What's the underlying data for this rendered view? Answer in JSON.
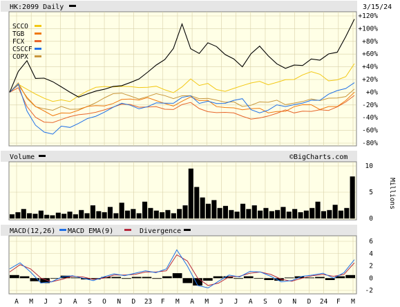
{
  "header": {
    "title": "HK:2099 Daily",
    "date": "3/15/24",
    "watermark": "©BigCharts.com"
  },
  "colors": {
    "hk2099": "#000000",
    "SCCO": "#f2c814",
    "TGB": "#f07a10",
    "FCX": "#e6642a",
    "CSCCF": "#1e6fe6",
    "COPX": "#c8963c",
    "macd": "#1e6fe6",
    "ema": "#b4283c",
    "divergence": "#000000",
    "volume": "#000000"
  },
  "chart_data": [
    {
      "type": "line",
      "panel": "price",
      "title": "HK:2099 Daily",
      "ylim": [
        -80,
        120
      ],
      "yticks": [
        "+120%",
        "+100%",
        "+80%",
        "+60%",
        "+40%",
        "+20%",
        "+0%",
        "-20%",
        "-40%",
        "-60%",
        "-80%"
      ],
      "xticks": [
        "A",
        "M",
        "J",
        "J",
        "A",
        "S",
        "O",
        "N",
        "D",
        "23",
        "F",
        "M",
        "A",
        "M",
        "J",
        "J",
        "A",
        "S",
        "O",
        "N",
        "D",
        "24",
        "F",
        "M"
      ],
      "legend": [
        "SCCO",
        "TGB",
        "FCX",
        "CSCCF",
        "COPX"
      ],
      "series": [
        {
          "name": "HK:2099",
          "values": [
            0,
            35,
            52,
            22,
            20,
            14,
            8,
            2,
            -5,
            -2,
            0,
            2,
            8,
            12,
            18,
            22,
            30,
            40,
            50,
            70,
            110,
            70,
            60,
            75,
            70,
            60,
            55,
            42,
            60,
            70,
            55,
            45,
            40,
            45,
            42,
            50,
            48,
            60,
            65,
            90,
            115
          ]
        },
        {
          "name": "SCCO",
          "values": [
            0,
            15,
            5,
            -5,
            -12,
            -15,
            -10,
            -12,
            -5,
            0,
            5,
            8,
            10,
            12,
            10,
            6,
            5,
            8,
            5,
            2,
            10,
            20,
            8,
            12,
            5,
            4,
            8,
            10,
            12,
            15,
            12,
            18,
            22,
            20,
            25,
            30,
            28,
            20,
            22,
            25,
            45
          ]
        },
        {
          "name": "TGB",
          "values": [
            0,
            12,
            -10,
            -25,
            -30,
            -35,
            -30,
            -32,
            -30,
            -25,
            -22,
            -20,
            -15,
            -10,
            -12,
            -15,
            -10,
            -12,
            -15,
            -20,
            -15,
            -10,
            -15,
            -12,
            -20,
            -22,
            -25,
            -30,
            -28,
            -25,
            -30,
            -28,
            -30,
            -25,
            -22,
            -20,
            -25,
            -20,
            -22,
            -15,
            0
          ]
        },
        {
          "name": "FCX",
          "values": [
            0,
            5,
            -25,
            -40,
            -45,
            -45,
            -42,
            -40,
            -38,
            -35,
            -30,
            -25,
            -22,
            -20,
            -22,
            -25,
            -22,
            -20,
            -25,
            -28,
            -22,
            -18,
            -25,
            -28,
            -30,
            -32,
            -35,
            -40,
            -42,
            -38,
            -35,
            -33,
            -30,
            -35,
            -30,
            -28,
            -25,
            -28,
            -25,
            -18,
            -5
          ]
        },
        {
          "name": "CSCCF",
          "values": [
            0,
            10,
            -30,
            -50,
            -60,
            -65,
            -55,
            -58,
            -50,
            -40,
            -35,
            -30,
            -25,
            -20,
            -22,
            -25,
            -20,
            -15,
            -18,
            -20,
            -10,
            -5,
            -15,
            -12,
            -18,
            -20,
            -15,
            -10,
            -25,
            -30,
            -28,
            -22,
            -25,
            -20,
            -15,
            -10,
            -12,
            -5,
            0,
            5,
            15
          ]
        },
        {
          "name": "COPX",
          "values": [
            0,
            14,
            -8,
            -20,
            -25,
            -30,
            -25,
            -28,
            -25,
            -20,
            -15,
            -10,
            -5,
            -3,
            -5,
            -8,
            -5,
            -3,
            -8,
            -12,
            -5,
            -3,
            -8,
            -10,
            -15,
            -18,
            -15,
            -20,
            -18,
            -15,
            -18,
            -15,
            -20,
            -15,
            -12,
            -10,
            -15,
            -12,
            -10,
            -5,
            5
          ]
        }
      ]
    },
    {
      "type": "bar",
      "panel": "volume",
      "title": "Volume",
      "ylabel": "Millions",
      "ylim": [
        0,
        10
      ],
      "yticks": [
        "10",
        "5",
        "0"
      ],
      "values": [
        0.8,
        1.2,
        1.8,
        1.0,
        0.9,
        1.5,
        0.7,
        0.6,
        1.1,
        0.9,
        1.3,
        0.8,
        1.6,
        1.0,
        2.5,
        1.4,
        1.2,
        2.2,
        1.0,
        3.0,
        1.5,
        1.8,
        1.0,
        3.2,
        2.0,
        1.5,
        1.2,
        1.6,
        1.0,
        1.8,
        2.5,
        9.5,
        6.0,
        4.0,
        2.8,
        3.5,
        2.0,
        2.4,
        1.6,
        1.3,
        2.8,
        1.8,
        2.5,
        1.5,
        2.0,
        1.4,
        1.6,
        2.2,
        1.3,
        1.8,
        1.2,
        1.5,
        2.0,
        3.2,
        1.4,
        1.6,
        2.6,
        1.5,
        2.0,
        8.0
      ]
    },
    {
      "type": "line",
      "panel": "macd",
      "title": "MACD(12,26)",
      "legend": [
        "MACD EMA(9)",
        "Divergence"
      ],
      "ylim": [
        -2,
        6
      ],
      "yticks": [
        "6",
        "4",
        "2",
        "0",
        "-2"
      ],
      "series": [
        {
          "name": "MACD(12,26)",
          "values": [
            1.5,
            2.5,
            1.0,
            -0.8,
            -0.6,
            0.2,
            0.4,
            0.0,
            -0.4,
            0.2,
            0.7,
            0.4,
            0.8,
            1.2,
            0.9,
            1.5,
            4.6,
            2.0,
            -1.2,
            -1.6,
            -0.5,
            0.5,
            0.2,
            1.1,
            1.0,
            0.3,
            -0.6,
            -0.4,
            0.3,
            0.5,
            0.8,
            0.0,
            0.9,
            3.0
          ]
        },
        {
          "name": "MACD EMA(9)",
          "values": [
            1.0,
            2.2,
            1.5,
            0.0,
            -0.6,
            -0.2,
            0.3,
            0.2,
            -0.2,
            0.0,
            0.5,
            0.5,
            0.6,
            1.0,
            1.0,
            1.2,
            3.8,
            2.8,
            0.0,
            -1.2,
            -0.8,
            0.2,
            0.3,
            0.8,
            1.0,
            0.6,
            -0.2,
            -0.5,
            0.0,
            0.4,
            0.6,
            0.3,
            0.6,
            2.5
          ]
        },
        {
          "name": "Divergence",
          "values": [
            0.5,
            0.3,
            -0.5,
            -0.8,
            0.0,
            0.4,
            0.1,
            -0.2,
            -0.2,
            0.2,
            0.2,
            -0.1,
            0.2,
            0.2,
            -0.1,
            0.3,
            0.8,
            -0.8,
            -1.2,
            -0.4,
            0.3,
            0.3,
            -0.1,
            0.3,
            0.0,
            -0.3,
            -0.4,
            0.1,
            0.3,
            0.1,
            0.2,
            -0.3,
            0.3,
            0.5
          ]
        }
      ]
    }
  ]
}
